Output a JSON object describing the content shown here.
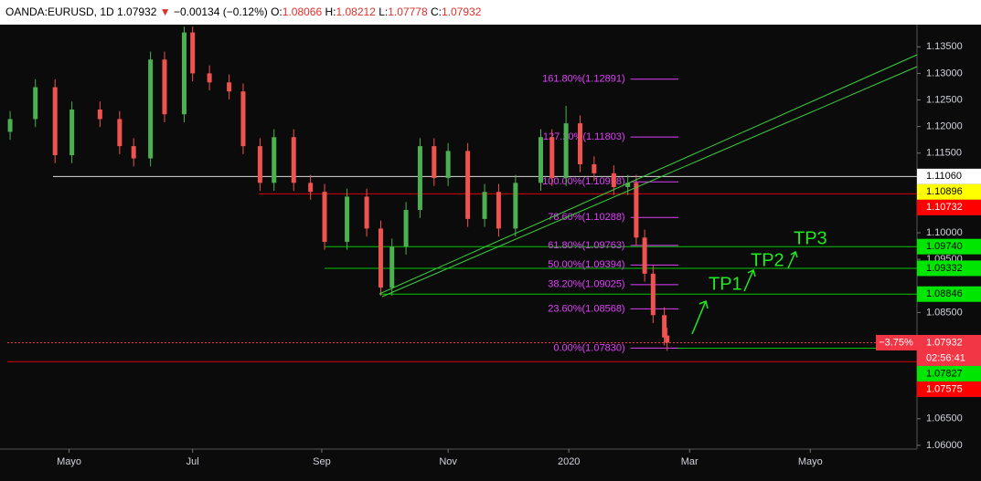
{
  "header": {
    "symbol": "OANDA:EURUSD, 1D",
    "last": "1.07932",
    "arrow": "▼",
    "change": "−0.00134 (−0.12%)",
    "o_label": "O:",
    "o": "1.08066",
    "h_label": "H:",
    "h": "1.08212",
    "l_label": "L:",
    "l": "1.07778",
    "c_label": "C:",
    "c": "1.07932"
  },
  "chart_data": {
    "type": "candlestick",
    "x": [
      1,
      10,
      17,
      23,
      33,
      40,
      45,
      51,
      56,
      63,
      66,
      72,
      79,
      84,
      90,
      95,
      102,
      108,
      113,
      121,
      128,
      133,
      137,
      142,
      147,
      152,
      157,
      164,
      170,
      175,
      181,
      190,
      194,
      199,
      204,
      209,
      216,
      221,
      224,
      227,
      230,
      234,
      235
    ],
    "open": [
      1.119,
      1.1214,
      1.1274,
      1.1146,
      1.1232,
      1.1214,
      1.1163,
      1.114,
      1.1326,
      1.1223,
      1.1377,
      1.13,
      1.1283,
      1.1266,
      1.1163,
      1.1094,
      1.118,
      1.1094,
      1.1077,
      1.0983,
      1.1068,
      1.1008,
      1.0897,
      1.0974,
      1.1043,
      1.1163,
      1.1103,
      1.1154,
      1.1026,
      1.1077,
      1.1008,
      1.1094,
      1.118,
      1.1103,
      1.1206,
      1.1129,
      1.1112,
      1.1086,
      1.1094,
      1.0991,
      1.0923,
      1.0845,
      1.08066
    ],
    "high": [
      1.1229,
      1.1289,
      1.1289,
      1.1247,
      1.1247,
      1.1229,
      1.1178,
      1.1341,
      1.1341,
      1.1388,
      1.1388,
      1.1315,
      1.1298,
      1.1281,
      1.1178,
      1.1195,
      1.1195,
      1.1109,
      1.1092,
      1.1083,
      1.1083,
      1.1023,
      1.0989,
      1.1058,
      1.1178,
      1.1178,
      1.1169,
      1.1169,
      1.1092,
      1.1092,
      1.1109,
      1.1195,
      1.1195,
      1.1239,
      1.1221,
      1.1144,
      1.1127,
      1.1109,
      1.1109,
      1.1006,
      1.0938,
      1.086,
      1.08212
    ],
    "low": [
      1.1175,
      1.1199,
      1.1131,
      1.1131,
      1.1199,
      1.1148,
      1.1125,
      1.1125,
      1.1208,
      1.1208,
      1.1285,
      1.1268,
      1.1251,
      1.1148,
      1.1079,
      1.1079,
      1.1079,
      1.1062,
      1.0968,
      1.0968,
      1.0993,
      1.0882,
      1.0882,
      1.0959,
      1.1028,
      1.1088,
      1.1088,
      1.1011,
      1.1011,
      1.0993,
      1.0993,
      1.1079,
      1.1088,
      1.1088,
      1.1114,
      1.1097,
      1.1071,
      1.1071,
      1.0976,
      1.0908,
      1.083,
      1.0788,
      1.07778
    ],
    "close": [
      1.1214,
      1.1274,
      1.1146,
      1.1232,
      1.1214,
      1.1163,
      1.114,
      1.1326,
      1.1223,
      1.1377,
      1.13,
      1.1283,
      1.1266,
      1.1163,
      1.1094,
      1.118,
      1.1094,
      1.1077,
      1.0983,
      1.1068,
      1.1008,
      1.0897,
      1.0974,
      1.1043,
      1.1163,
      1.1103,
      1.1154,
      1.1026,
      1.1077,
      1.1008,
      1.1094,
      1.118,
      1.1103,
      1.1206,
      1.1129,
      1.1112,
      1.1086,
      1.1094,
      1.0991,
      1.0923,
      1.0845,
      1.0803,
      1.07932
    ],
    "up_color": "#4caf50",
    "down_color": "#ef5350",
    "xlim": [
      0,
      324
    ],
    "xticks": [
      {
        "value": 22,
        "label": "Mayo"
      },
      {
        "value": 66,
        "label": "Jul"
      },
      {
        "value": 112,
        "label": "Sep"
      },
      {
        "value": 157,
        "label": "Nov"
      },
      {
        "value": 200,
        "label": "2020"
      },
      {
        "value": 243,
        "label": "Mar"
      },
      {
        "value": 286,
        "label": "Mayo"
      }
    ],
    "ylim": [
      1.0593,
      1.139
    ],
    "yticks": [
      {
        "value": 1.135,
        "label": "1.13500"
      },
      {
        "value": 1.13,
        "label": "1.13000"
      },
      {
        "value": 1.125,
        "label": "1.12500"
      },
      {
        "value": 1.12,
        "label": "1.12000"
      },
      {
        "value": 1.115,
        "label": "1.11500"
      },
      {
        "value": 1.1,
        "label": "1.10000"
      },
      {
        "value": 1.095,
        "label": "1.09500"
      },
      {
        "value": 1.085,
        "label": "1.08500"
      },
      {
        "value": 1.065,
        "label": "1.06500"
      },
      {
        "value": 1.06,
        "label": "1.06000"
      }
    ],
    "price_lines": [
      {
        "value": 1.1106,
        "label": "1.11060",
        "color": "#ffffff",
        "text_color": "#000000"
      },
      {
        "value": 1.10896,
        "label": "1.10896",
        "color": "#ffff00",
        "text_color": "#000000"
      },
      {
        "value": 1.10732,
        "label": "1.10732",
        "color": "#ff0000",
        "text_color": "#ffffff"
      },
      {
        "value": 1.0974,
        "label": "1.09740",
        "color": "#00e600",
        "text_color": "#000000"
      },
      {
        "value": 1.09332,
        "label": "1.09332",
        "color": "#00e600",
        "text_color": "#000000"
      },
      {
        "value": 1.08846,
        "label": "1.08846",
        "color": "#00e600",
        "text_color": "#000000"
      },
      {
        "value": 1.07827,
        "label": "1.07827",
        "color": "#00e600",
        "text_color": "#000000"
      },
      {
        "value": 1.07575,
        "label": "1.07575",
        "color": "#ff0000",
        "text_color": "#ffffff"
      }
    ],
    "current_price": {
      "value": 1.07932,
      "label": "1.07932",
      "countdown": "02:56:41",
      "change_tag": "−3.75%",
      "color": "#f23645"
    },
    "fib_color": "#e040fb",
    "fib_levels": [
      {
        "value": 1.12891,
        "label": "161.80%(1.12891)"
      },
      {
        "value": 1.11803,
        "label": "127.20%(1.11803)"
      },
      {
        "value": 1.10958,
        "label": "100.00%(1.10958)"
      },
      {
        "value": 1.10288,
        "label": "78.60%(1.10288)"
      },
      {
        "value": 1.09763,
        "label": "61.80%(1.09763)"
      },
      {
        "value": 1.09394,
        "label": "50.00%(1.09394)"
      },
      {
        "value": 1.09025,
        "label": "38.20%(1.09025)"
      },
      {
        "value": 1.08568,
        "label": "23.60%(1.08568)"
      },
      {
        "value": 1.0783,
        "label": "0.00%(1.07830)"
      }
    ],
    "annotations": [
      "TP1",
      "TP2",
      "TP3"
    ]
  }
}
